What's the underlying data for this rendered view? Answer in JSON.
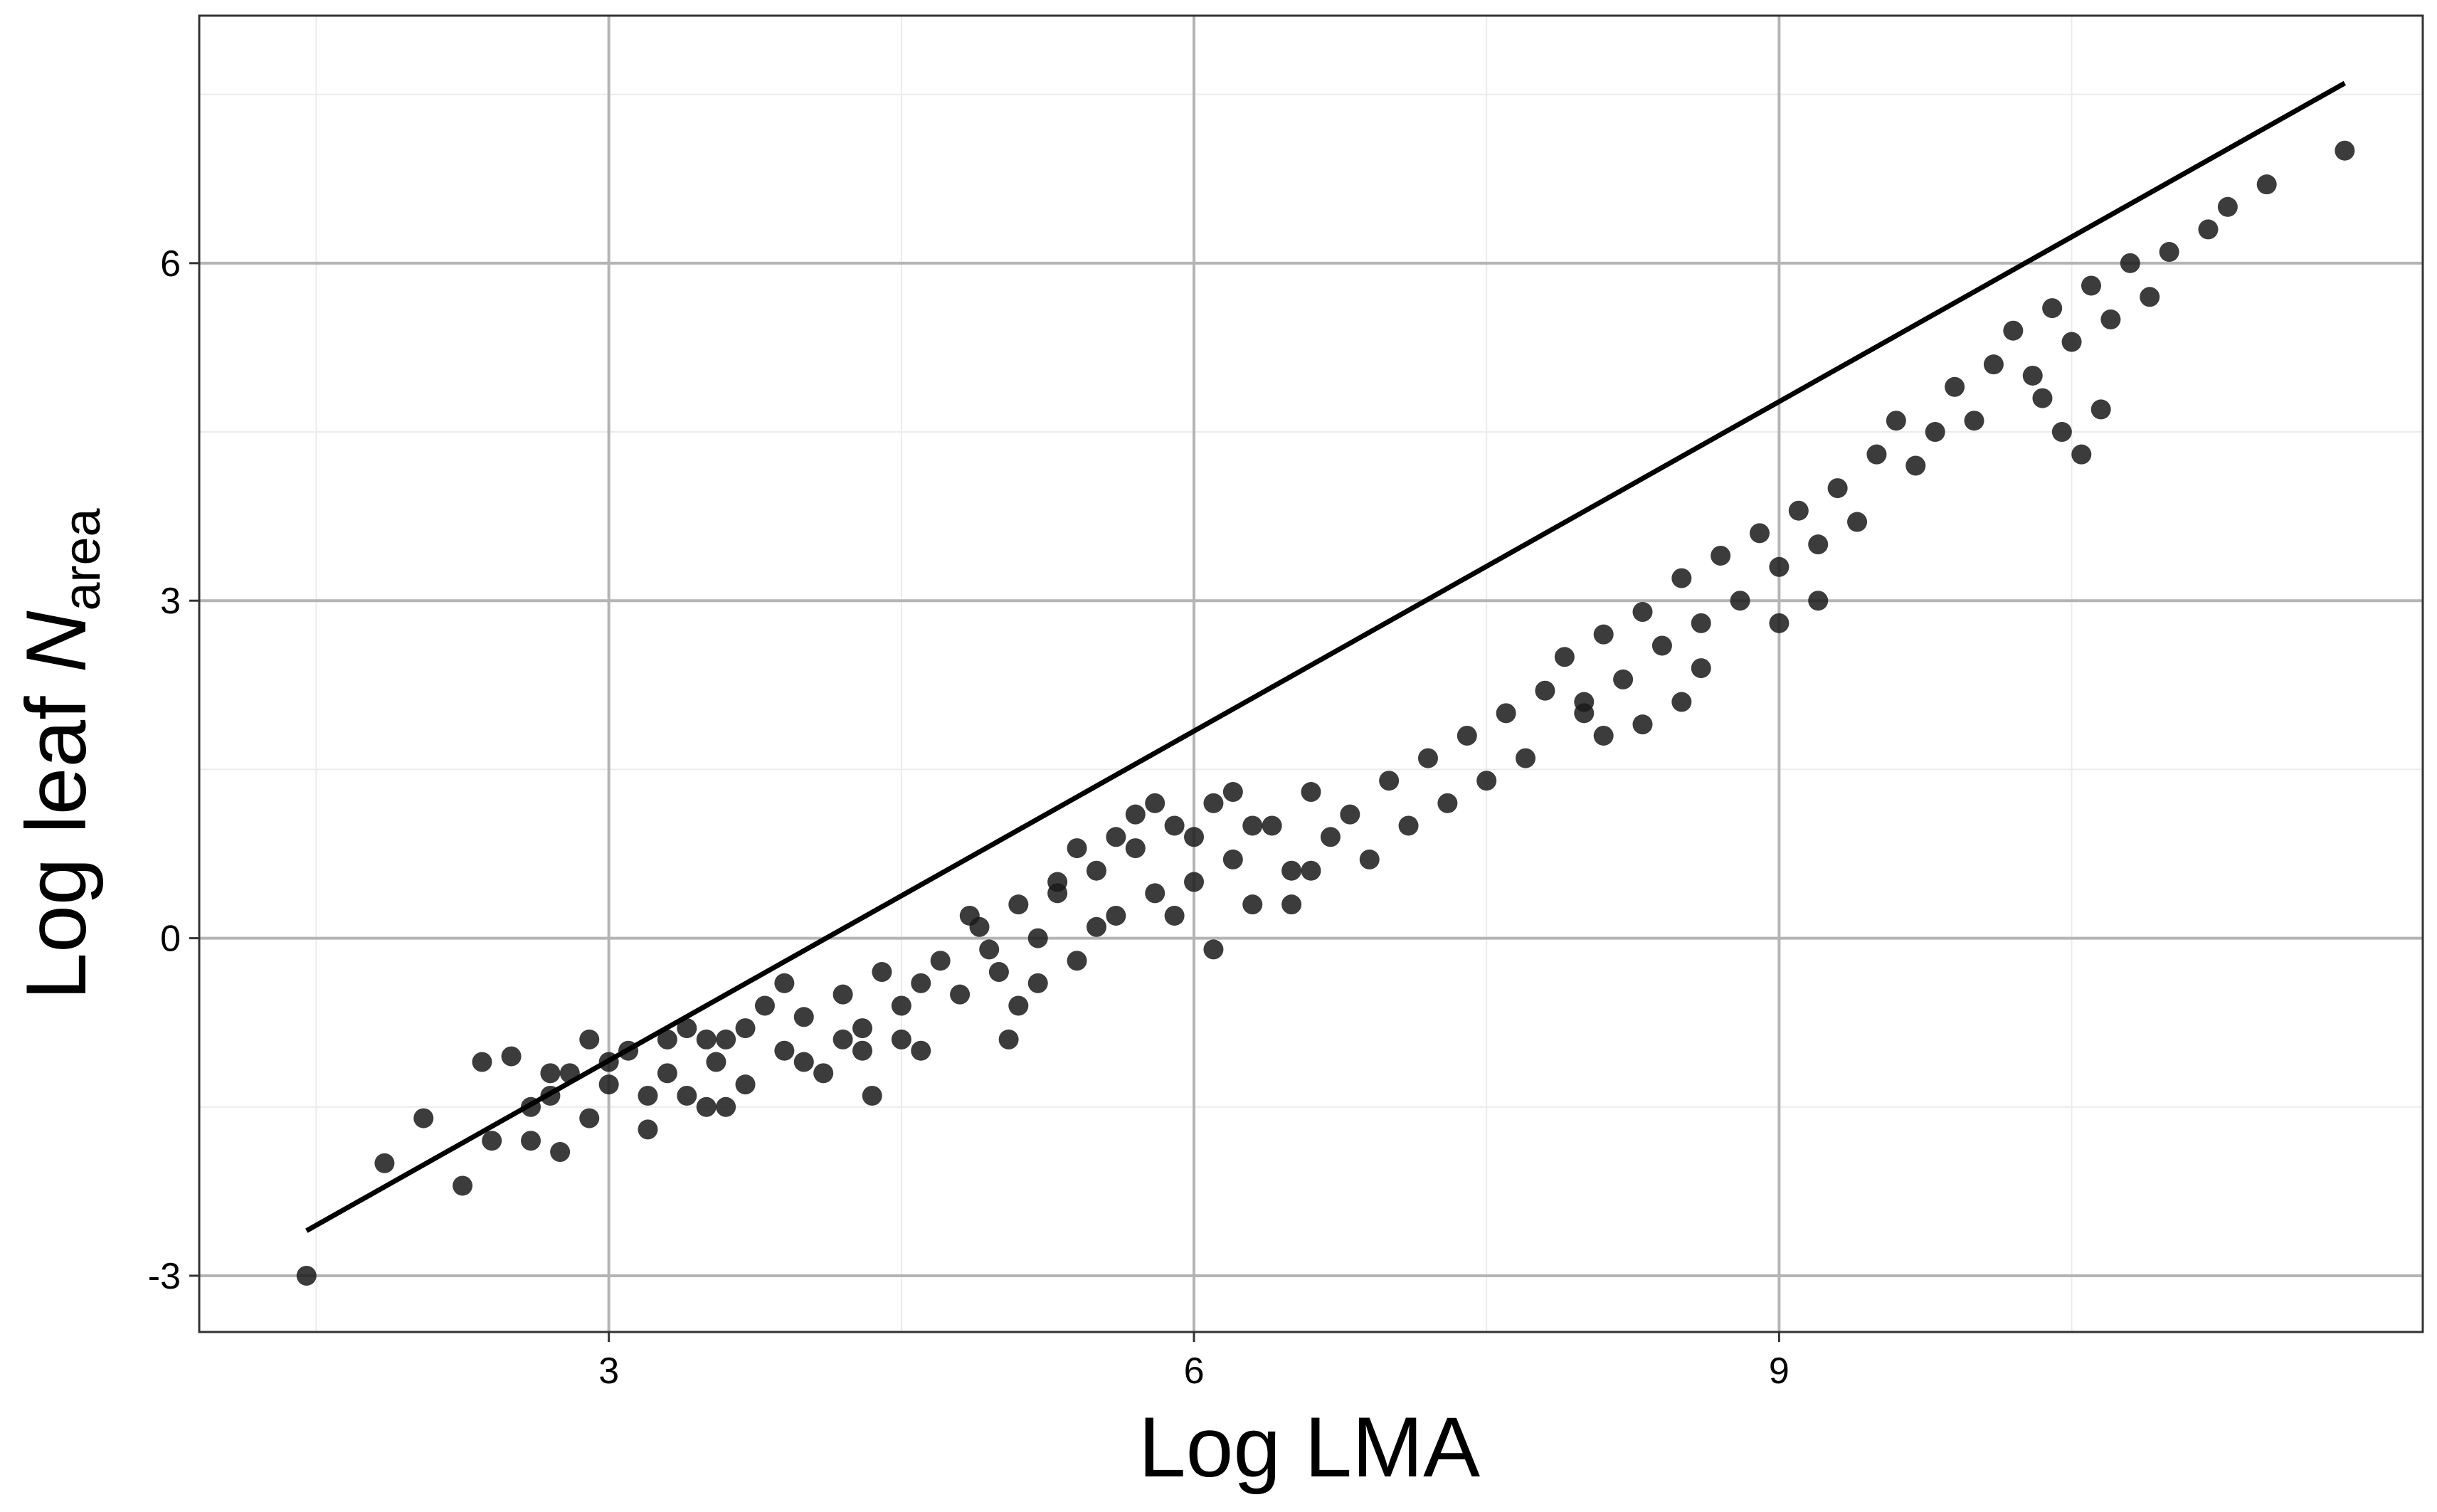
{
  "chart_data": {
    "type": "scatter",
    "xlabel": "Log LMA",
    "ylabel_main": "Log leaf ",
    "ylabel_italic": "N",
    "ylabel_sub": "area",
    "xlim": [
      0.9,
      12.3
    ],
    "ylim": [
      -3.5,
      8.2
    ],
    "x_ticks": [
      3,
      6,
      9
    ],
    "y_ticks": [
      -3,
      0,
      3,
      6
    ],
    "x_tick_labels": [
      "3",
      "6",
      "9"
    ],
    "y_tick_labels": [
      "-3",
      "0",
      "3",
      "6"
    ],
    "grid": true,
    "point_color": "#1a1a1a",
    "line_color": "#000000",
    "fit_line": {
      "x": [
        1.45,
        11.9
      ],
      "y": [
        -2.6,
        7.6
      ]
    },
    "points": [
      [
        1.45,
        -3.0
      ],
      [
        1.85,
        -2.0
      ],
      [
        2.05,
        -1.6
      ],
      [
        2.25,
        -2.2
      ],
      [
        2.35,
        -1.1
      ],
      [
        2.5,
        -1.05
      ],
      [
        2.4,
        -1.8
      ],
      [
        2.6,
        -1.5
      ],
      [
        2.7,
        -1.4
      ],
      [
        2.75,
        -1.9
      ],
      [
        2.8,
        -1.2
      ],
      [
        2.9,
        -1.6
      ],
      [
        3.0,
        -1.3
      ],
      [
        3.1,
        -1.0
      ],
      [
        3.2,
        -1.4
      ],
      [
        3.3,
        -1.2
      ],
      [
        3.4,
        -0.8
      ],
      [
        3.5,
        -1.5
      ],
      [
        3.55,
        -1.1
      ],
      [
        3.6,
        -0.9
      ],
      [
        3.7,
        -1.3
      ],
      [
        3.8,
        -0.6
      ],
      [
        3.9,
        -1.0
      ],
      [
        4.0,
        -0.7
      ],
      [
        4.1,
        -1.2
      ],
      [
        4.2,
        -0.5
      ],
      [
        4.3,
        -0.8
      ],
      [
        4.35,
        -1.4
      ],
      [
        4.4,
        -0.3
      ],
      [
        4.5,
        -0.6
      ],
      [
        4.6,
        -1.0
      ],
      [
        4.7,
        -0.2
      ],
      [
        4.8,
        -0.5
      ],
      [
        4.9,
        0.1
      ],
      [
        5.0,
        -0.3
      ],
      [
        5.05,
        -0.9
      ],
      [
        5.1,
        0.3
      ],
      [
        5.2,
        0.0
      ],
      [
        5.3,
        0.4
      ],
      [
        5.4,
        -0.2
      ],
      [
        5.5,
        0.6
      ],
      [
        5.6,
        0.2
      ],
      [
        5.7,
        0.8
      ],
      [
        5.8,
        0.4
      ],
      [
        5.9,
        1.0
      ],
      [
        6.0,
        0.5
      ],
      [
        6.1,
        1.2
      ],
      [
        6.2,
        0.7
      ],
      [
        6.3,
        0.3
      ],
      [
        6.4,
        1.0
      ],
      [
        6.5,
        0.6
      ],
      [
        6.6,
        1.3
      ],
      [
        6.7,
        0.9
      ],
      [
        6.8,
        1.1
      ],
      [
        6.9,
        0.7
      ],
      [
        7.0,
        1.4
      ],
      [
        7.1,
        1.0
      ],
      [
        7.2,
        1.6
      ],
      [
        7.3,
        1.2
      ],
      [
        7.4,
        1.8
      ],
      [
        7.5,
        1.4
      ],
      [
        7.6,
        2.0
      ],
      [
        7.7,
        1.6
      ],
      [
        7.8,
        2.2
      ],
      [
        7.9,
        2.5
      ],
      [
        8.0,
        2.0
      ],
      [
        8.1,
        2.7
      ],
      [
        8.2,
        2.3
      ],
      [
        8.3,
        2.9
      ],
      [
        8.4,
        2.6
      ],
      [
        8.5,
        3.2
      ],
      [
        8.6,
        2.8
      ],
      [
        8.7,
        3.4
      ],
      [
        8.8,
        3.0
      ],
      [
        8.9,
        3.6
      ],
      [
        9.0,
        3.3
      ],
      [
        9.1,
        3.8
      ],
      [
        9.2,
        3.5
      ],
      [
        9.3,
        4.0
      ],
      [
        9.4,
        3.7
      ],
      [
        9.5,
        4.3
      ],
      [
        9.6,
        4.6
      ],
      [
        9.7,
        4.2
      ],
      [
        9.8,
        4.5
      ],
      [
        9.9,
        4.9
      ],
      [
        10.0,
        4.6
      ],
      [
        10.1,
        5.1
      ],
      [
        10.2,
        5.4
      ],
      [
        10.3,
        5.0
      ],
      [
        10.4,
        5.6
      ],
      [
        10.5,
        5.3
      ],
      [
        10.6,
        5.8
      ],
      [
        10.7,
        5.5
      ],
      [
        10.8,
        6.0
      ],
      [
        10.9,
        5.7
      ],
      [
        11.0,
        6.1
      ],
      [
        11.2,
        6.3
      ],
      [
        11.3,
        6.5
      ],
      [
        11.5,
        6.7
      ],
      [
        11.9,
        7.0
      ],
      [
        10.45,
        4.5
      ],
      [
        10.55,
        4.3
      ],
      [
        10.65,
        4.7
      ],
      [
        10.35,
        4.8
      ],
      [
        8.3,
        1.9
      ],
      [
        8.1,
        1.8
      ],
      [
        8.5,
        2.1
      ],
      [
        8.6,
        2.4
      ],
      [
        8.0,
        2.1
      ],
      [
        9.0,
        2.8
      ],
      [
        9.2,
        3.0
      ],
      [
        5.6,
        0.9
      ],
      [
        5.7,
        1.1
      ],
      [
        5.8,
        1.2
      ],
      [
        6.2,
        1.3
      ],
      [
        6.3,
        1.0
      ],
      [
        6.0,
        0.9
      ],
      [
        5.5,
        0.1
      ],
      [
        5.4,
        0.8
      ],
      [
        5.3,
        0.5
      ],
      [
        5.9,
        0.2
      ],
      [
        6.5,
        0.3
      ],
      [
        6.6,
        0.6
      ],
      [
        6.1,
        -0.1
      ],
      [
        5.2,
        -0.4
      ],
      [
        5.1,
        -0.6
      ],
      [
        4.95,
        -0.1
      ],
      [
        4.85,
        0.2
      ],
      [
        4.6,
        -0.4
      ],
      [
        4.5,
        -0.9
      ],
      [
        4.3,
        -1.0
      ],
      [
        4.2,
        -0.9
      ],
      [
        4.0,
        -1.1
      ],
      [
        3.9,
        -0.4
      ],
      [
        3.7,
        -0.8
      ],
      [
        3.6,
        -1.5
      ],
      [
        3.5,
        -0.9
      ],
      [
        3.4,
        -1.4
      ],
      [
        3.3,
        -0.9
      ],
      [
        3.2,
        -1.7
      ],
      [
        3.0,
        -1.1
      ],
      [
        2.9,
        -0.9
      ],
      [
        2.7,
        -1.2
      ],
      [
        2.6,
        -1.8
      ]
    ]
  }
}
